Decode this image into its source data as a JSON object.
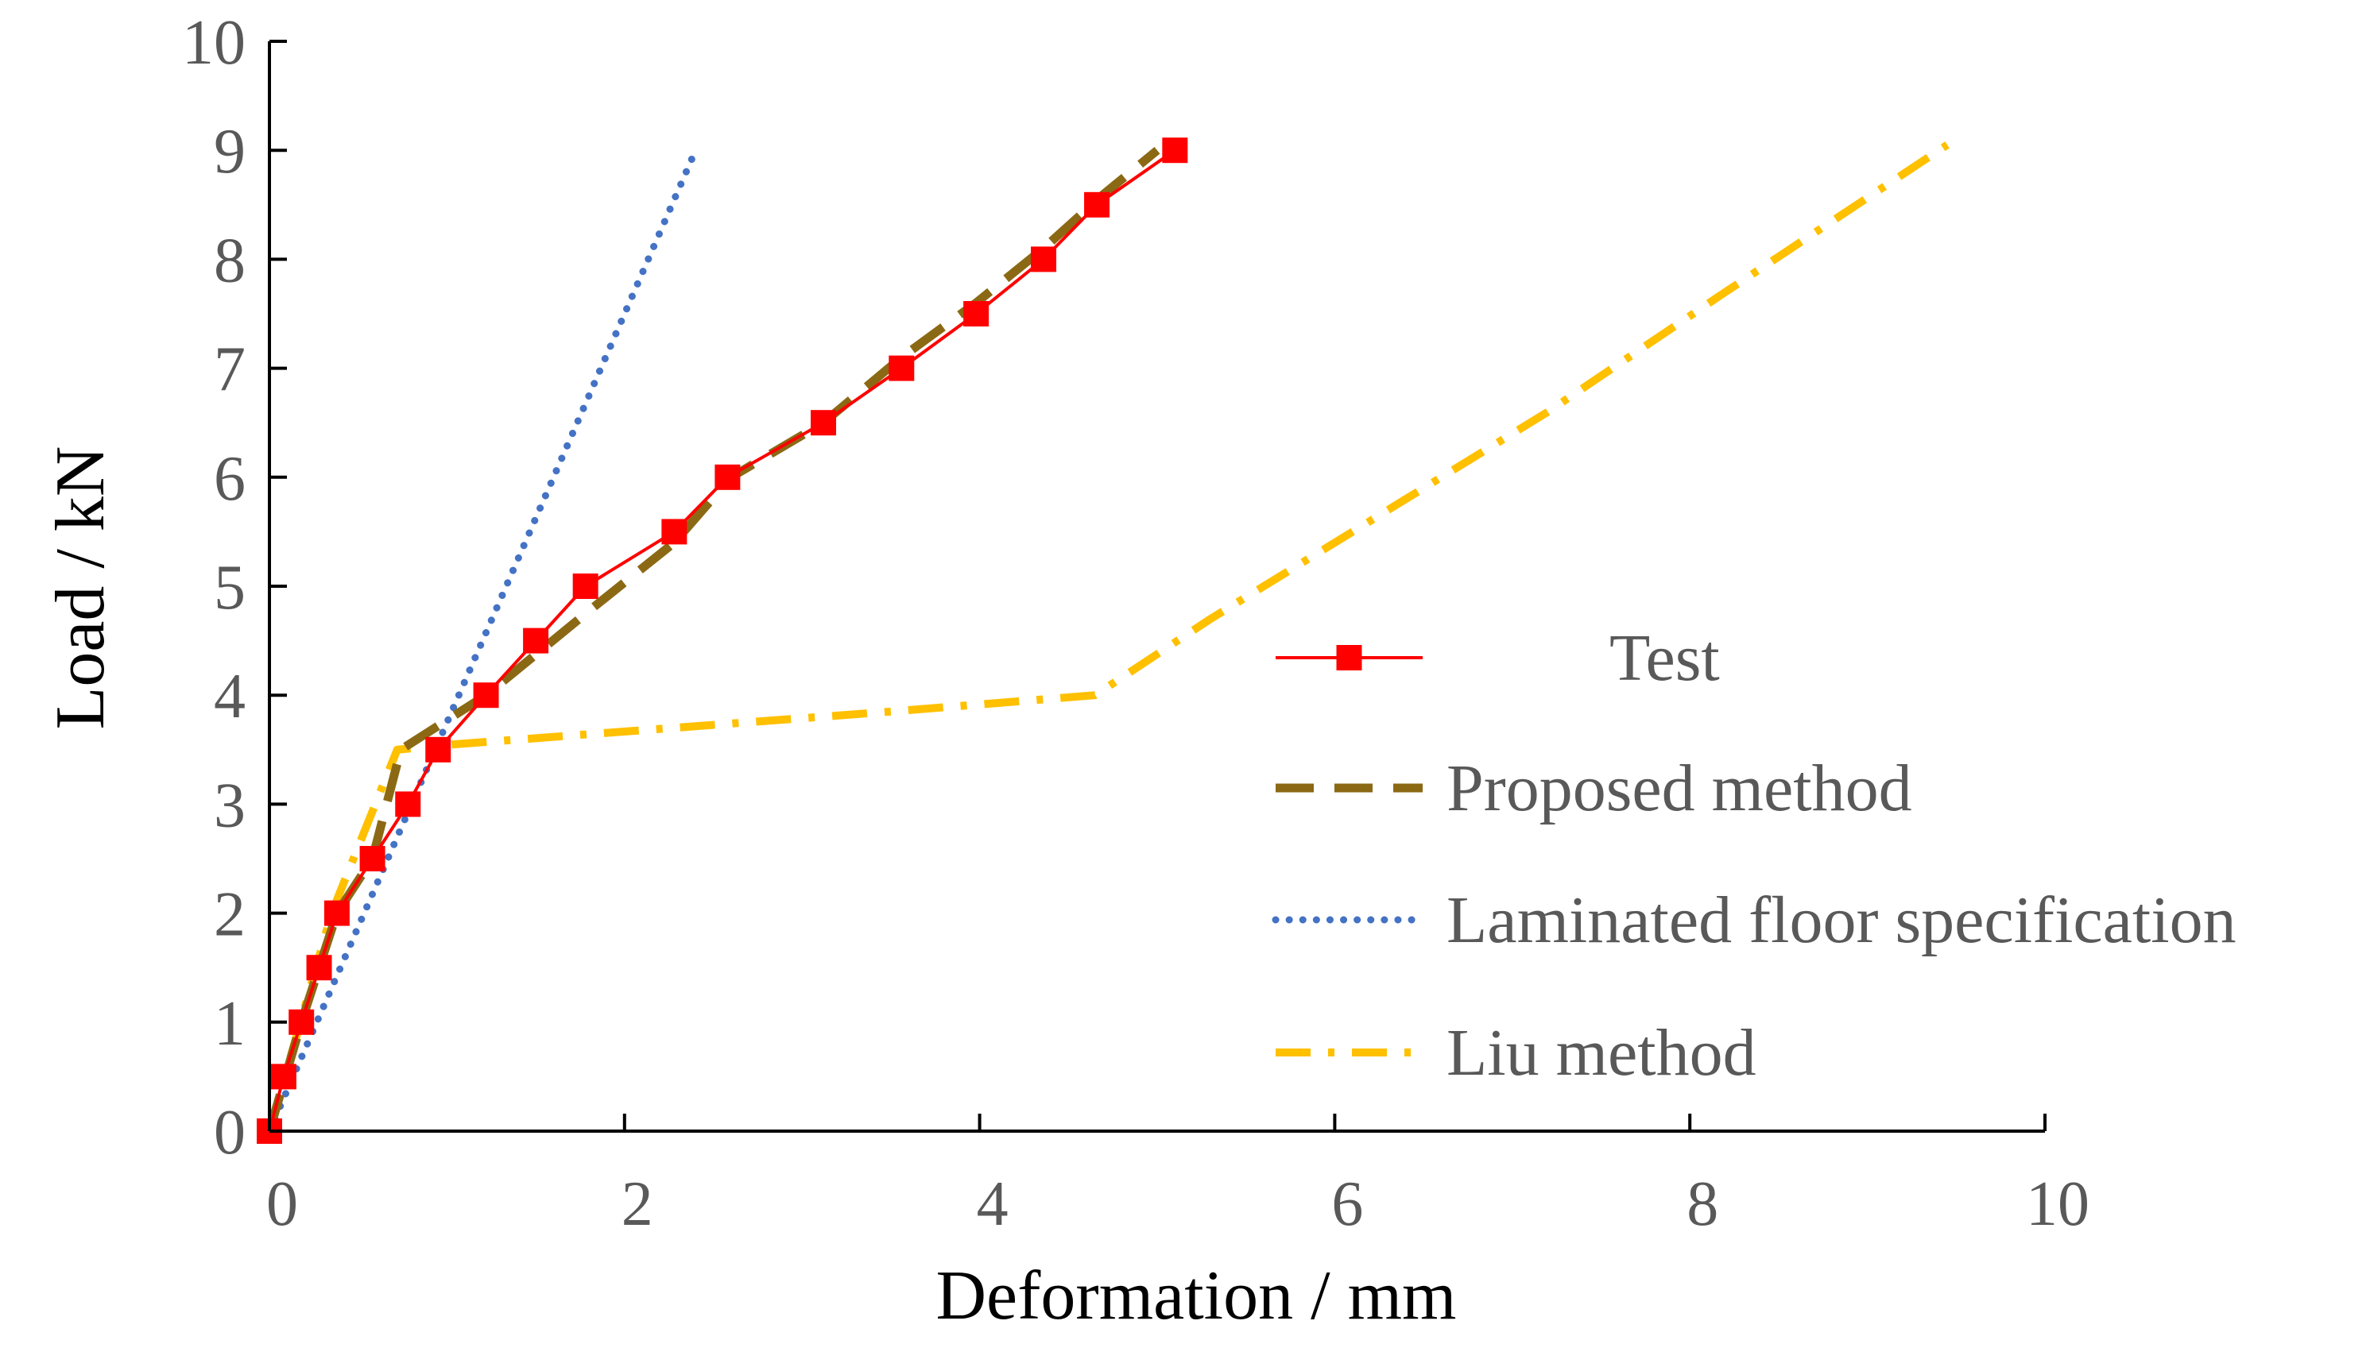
{
  "chart_data": {
    "type": "line",
    "title": "",
    "xlabel": "Deformation / mm",
    "ylabel": "Load / kN",
    "xlim": [
      0,
      10
    ],
    "ylim": [
      0,
      10
    ],
    "xticks": [
      "0",
      "2",
      "4",
      "6",
      "8",
      "10"
    ],
    "yticks": [
      "0",
      "1",
      "2",
      "3",
      "4",
      "5",
      "6",
      "7",
      "8",
      "9",
      "10"
    ],
    "grid": false,
    "legend_position": "right",
    "series": [
      {
        "name": "Test",
        "style": "solid-square-markers",
        "color": "#FF0000",
        "x": [
          0,
          0.08,
          0.18,
          0.28,
          0.38,
          0.58,
          0.78,
          0.95,
          1.22,
          1.5,
          1.78,
          2.28,
          2.58,
          3.12,
          3.56,
          3.98,
          4.36,
          4.66,
          5.1
        ],
        "y": [
          0,
          0.5,
          1.0,
          1.5,
          2.0,
          2.5,
          3.0,
          3.5,
          4.0,
          4.5,
          5.0,
          5.5,
          6.0,
          6.5,
          7.0,
          7.5,
          8.0,
          8.5,
          9.0
        ]
      },
      {
        "name": "Proposed method",
        "style": "dashed",
        "color": "#8B6914",
        "x": [
          0,
          0.18,
          0.38,
          0.58,
          0.74,
          0.98,
          1.22,
          1.52,
          1.82,
          2.28,
          2.6,
          3.12,
          3.56,
          3.98,
          4.36,
          4.7,
          5.0
        ],
        "y": [
          0,
          1.0,
          2.0,
          2.5,
          3.5,
          3.75,
          4.0,
          4.4,
          4.8,
          5.4,
          6.0,
          6.5,
          7.1,
          7.6,
          8.1,
          8.6,
          9.0
        ]
      },
      {
        "name": "Laminated floor specification",
        "style": "dotted",
        "color": "#4472C4",
        "x": [
          0,
          2.4
        ],
        "y": [
          0,
          9.0
        ]
      },
      {
        "name": "Liu method",
        "style": "dash-dot",
        "color": "#FFC000",
        "x": [
          0,
          0.35,
          0.72,
          1.05,
          3.5,
          4.65,
          5.3,
          6.2,
          7.2,
          8.2,
          9.45
        ],
        "y": [
          0,
          2.0,
          3.5,
          3.55,
          3.85,
          4.0,
          4.7,
          5.6,
          6.6,
          7.7,
          9.05
        ]
      }
    ]
  }
}
